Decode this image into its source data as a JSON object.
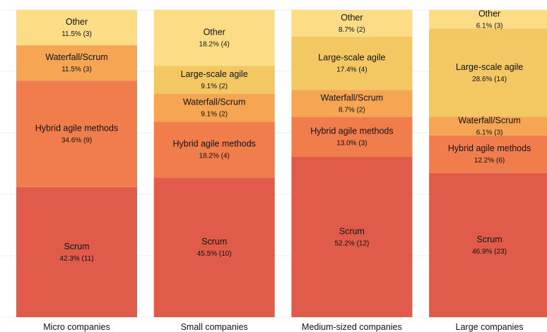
{
  "chart_data": {
    "type": "bar",
    "stacked": true,
    "normalized": true,
    "categories": [
      "Micro companies",
      "Small companies",
      "Medium-sized companies",
      "Large companies"
    ],
    "series": [
      {
        "name": "Scrum",
        "color": "#e05b4a",
        "values": [
          42.3,
          45.5,
          52.2,
          46.9
        ],
        "labels": [
          "42.3% (11)",
          "45.5% (10)",
          "52.2% (12)",
          "46.9% (23)"
        ]
      },
      {
        "name": "Hybrid agile methods",
        "color": "#f27d4c",
        "values": [
          34.6,
          18.2,
          13.0,
          12.2
        ],
        "labels": [
          "34.6% (9)",
          "18.2% (4)",
          "13.0% (3)",
          "12.2% (6)"
        ]
      },
      {
        "name": "Waterfall/Scrum",
        "color": "#f6a552",
        "values": [
          11.5,
          9.1,
          8.7,
          6.1
        ],
        "labels": [
          "11.5% (3)",
          "9.1% (2)",
          "8.7% (2)",
          "6.1% (3)"
        ]
      },
      {
        "name": "Large-scale agile",
        "color": "#f3c862",
        "values": [
          0,
          9.1,
          17.4,
          28.6
        ],
        "labels": [
          "",
          "9.1% (2)",
          "17.4% (4)",
          "28.6% (14)"
        ]
      },
      {
        "name": "Other",
        "color": "#fcdd86",
        "values": [
          11.5,
          18.2,
          8.7,
          6.1
        ],
        "labels": [
          "11.5% (3)",
          "18.2% (4)",
          "8.7% (2)",
          "6.1% (3)"
        ]
      }
    ],
    "ylim": [
      0,
      100
    ],
    "grid": true,
    "legend": "none"
  }
}
